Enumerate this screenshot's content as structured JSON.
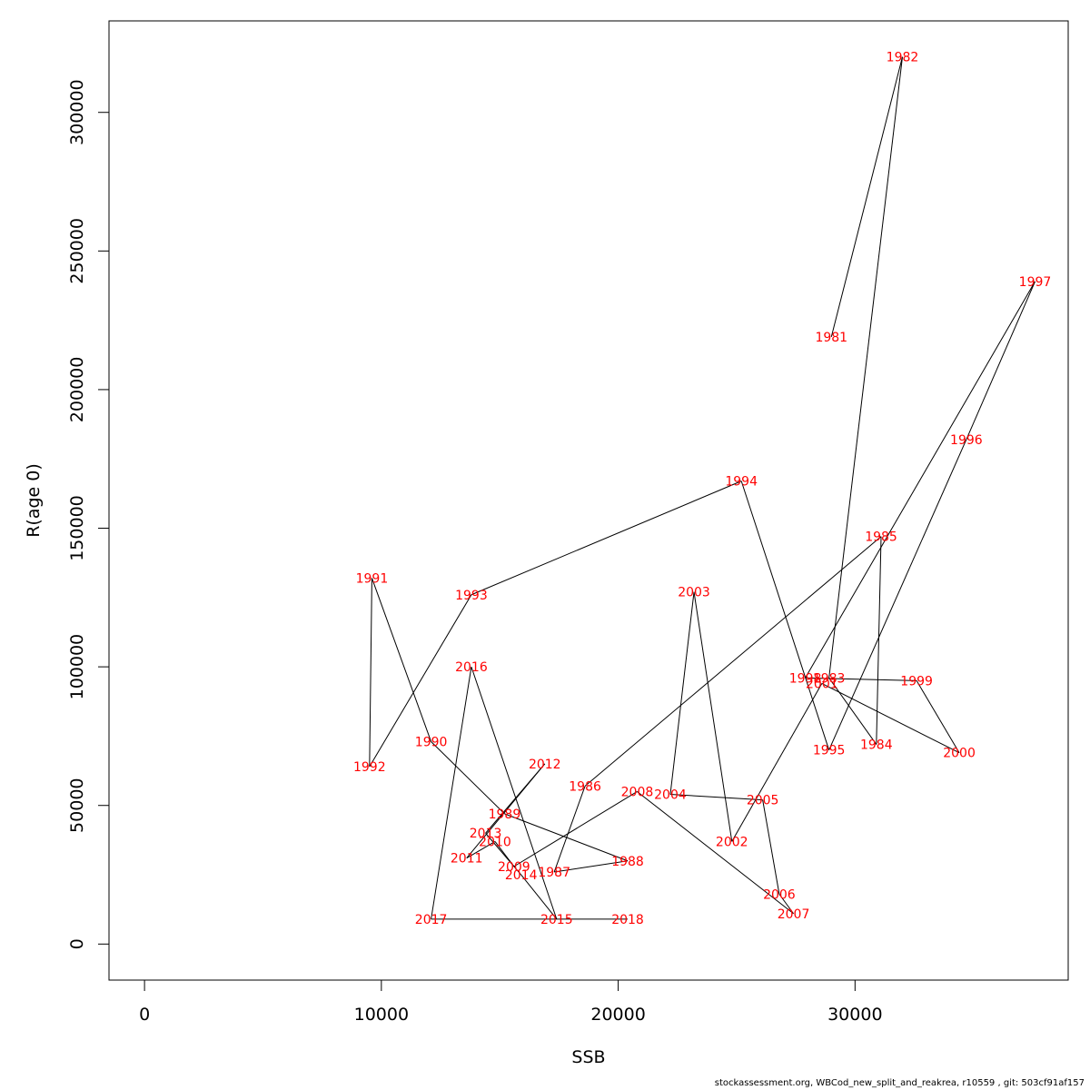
{
  "chart_data": {
    "type": "scatter",
    "connected": true,
    "xlabel": "SSB",
    "ylabel": "R(age 0)",
    "xlim": [
      -1500,
      39000
    ],
    "ylim": [
      -13000,
      333000
    ],
    "xticks": [
      0,
      10000,
      20000,
      30000
    ],
    "yticks": [
      0,
      50000,
      100000,
      150000,
      200000,
      250000,
      300000
    ],
    "grid": false,
    "point_label_color": "#ff0000",
    "line_color": "#000000",
    "points": [
      {
        "year": "1981",
        "x": 29000,
        "y": 219000
      },
      {
        "year": "1982",
        "x": 32000,
        "y": 320000
      },
      {
        "year": "1983",
        "x": 28900,
        "y": 96000
      },
      {
        "year": "1984",
        "x": 30900,
        "y": 72000
      },
      {
        "year": "1985",
        "x": 31100,
        "y": 147000
      },
      {
        "year": "1986",
        "x": 18600,
        "y": 57000
      },
      {
        "year": "1987",
        "x": 17300,
        "y": 26000
      },
      {
        "year": "1988",
        "x": 20400,
        "y": 30000
      },
      {
        "year": "1989",
        "x": 15200,
        "y": 47000
      },
      {
        "year": "1990",
        "x": 12100,
        "y": 73000
      },
      {
        "year": "1991",
        "x": 9600,
        "y": 132000
      },
      {
        "year": "1992",
        "x": 9500,
        "y": 64000
      },
      {
        "year": "1993",
        "x": 13800,
        "y": 126000
      },
      {
        "year": "1994",
        "x": 25200,
        "y": 167000
      },
      {
        "year": "1995",
        "x": 28900,
        "y": 70000
      },
      {
        "year": "1996",
        "x": 34700,
        "y": 182000
      },
      {
        "year": "1997",
        "x": 37600,
        "y": 239000
      },
      {
        "year": "1998",
        "x": 27900,
        "y": 96000
      },
      {
        "year": "1999",
        "x": 32600,
        "y": 95000
      },
      {
        "year": "2000",
        "x": 34400,
        "y": 69000
      },
      {
        "year": "2001",
        "x": 28600,
        "y": 94000
      },
      {
        "year": "2002",
        "x": 24800,
        "y": 37000
      },
      {
        "year": "2003",
        "x": 23200,
        "y": 127000
      },
      {
        "year": "2004",
        "x": 22200,
        "y": 54000
      },
      {
        "year": "2005",
        "x": 26100,
        "y": 52000
      },
      {
        "year": "2006",
        "x": 26800,
        "y": 18000
      },
      {
        "year": "2007",
        "x": 27400,
        "y": 11000
      },
      {
        "year": "2008",
        "x": 20800,
        "y": 55000
      },
      {
        "year": "2009",
        "x": 15600,
        "y": 28000
      },
      {
        "year": "2010",
        "x": 14800,
        "y": 37000
      },
      {
        "year": "2011",
        "x": 13600,
        "y": 31000
      },
      {
        "year": "2012",
        "x": 16900,
        "y": 65000
      },
      {
        "year": "2013",
        "x": 14400,
        "y": 40000
      },
      {
        "year": "2014",
        "x": 15900,
        "y": 25000
      },
      {
        "year": "2015",
        "x": 17400,
        "y": 9000
      },
      {
        "year": "2016",
        "x": 13800,
        "y": 100000
      },
      {
        "year": "2017",
        "x": 12100,
        "y": 9000
      },
      {
        "year": "2018",
        "x": 20400,
        "y": 9000
      }
    ]
  },
  "footer": {
    "text": "stockassessment.org, WBCod_new_split_and_reakrea, r10559 , git: 503cf91af157"
  }
}
